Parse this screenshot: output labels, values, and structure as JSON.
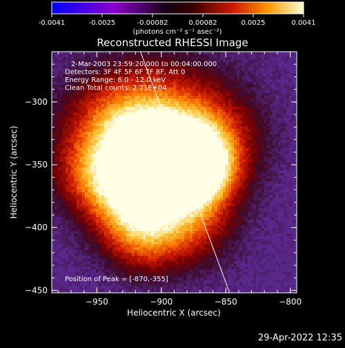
{
  "chart_data": {
    "type": "heatmap",
    "title": "Reconstructed RHESSI Image",
    "xlabel": "Heliocentric X (arcsec)",
    "ylabel": "Heliocentric Y (arcsec)",
    "xlim": [
      -985,
      -795
    ],
    "ylim": [
      -452,
      -260
    ],
    "xticks": [
      -950,
      -900,
      -850,
      -800
    ],
    "yticks": [
      -300,
      -350,
      -400,
      -450
    ],
    "colorbar": {
      "ticks": [
        "-0.0041",
        "-0.0025",
        "-0.00082",
        "0.00082",
        "0.0025",
        "0.0041"
      ],
      "range": [
        -0.0041,
        0.0041
      ],
      "unit_label": "(photons cm⁻² s⁻¹ asec⁻²)"
    },
    "annotations": [
      "2-Mar-2003 23:59:20.000 to 00:04:00.000",
      "Detectors: 3F 4F 5F 6F 7F 8F, Att 0",
      "Energy Range: 6.0 - 12.0 keV",
      "Clean     Total counts: 2.71E+04"
    ],
    "peak_label": "Position of Peak = [-870,-355]",
    "peak": [
      -870,
      -355
    ],
    "limb_line": [
      [
        -918,
        -255
      ],
      [
        -847,
        -452
      ]
    ],
    "blobs": [
      {
        "x": -870,
        "y": -355,
        "sigma": 18,
        "amp": 1.0
      },
      {
        "x": -900,
        "y": -345,
        "sigma": 28,
        "amp": 0.75
      },
      {
        "x": -930,
        "y": -330,
        "sigma": 32,
        "amp": 0.7
      },
      {
        "x": -925,
        "y": -382,
        "sigma": 22,
        "amp": 0.65
      },
      {
        "x": -900,
        "y": -320,
        "sigma": 40,
        "amp": 0.5
      },
      {
        "x": -880,
        "y": -395,
        "sigma": 24,
        "amp": 0.6
      },
      {
        "x": -915,
        "y": -410,
        "sigma": 20,
        "amp": 0.45
      },
      {
        "x": -860,
        "y": -330,
        "sigma": 25,
        "amp": 0.45
      },
      {
        "x": -955,
        "y": -360,
        "sigma": 20,
        "amp": 0.35
      }
    ],
    "date_stamp": "29-Apr-2022 12:35"
  }
}
